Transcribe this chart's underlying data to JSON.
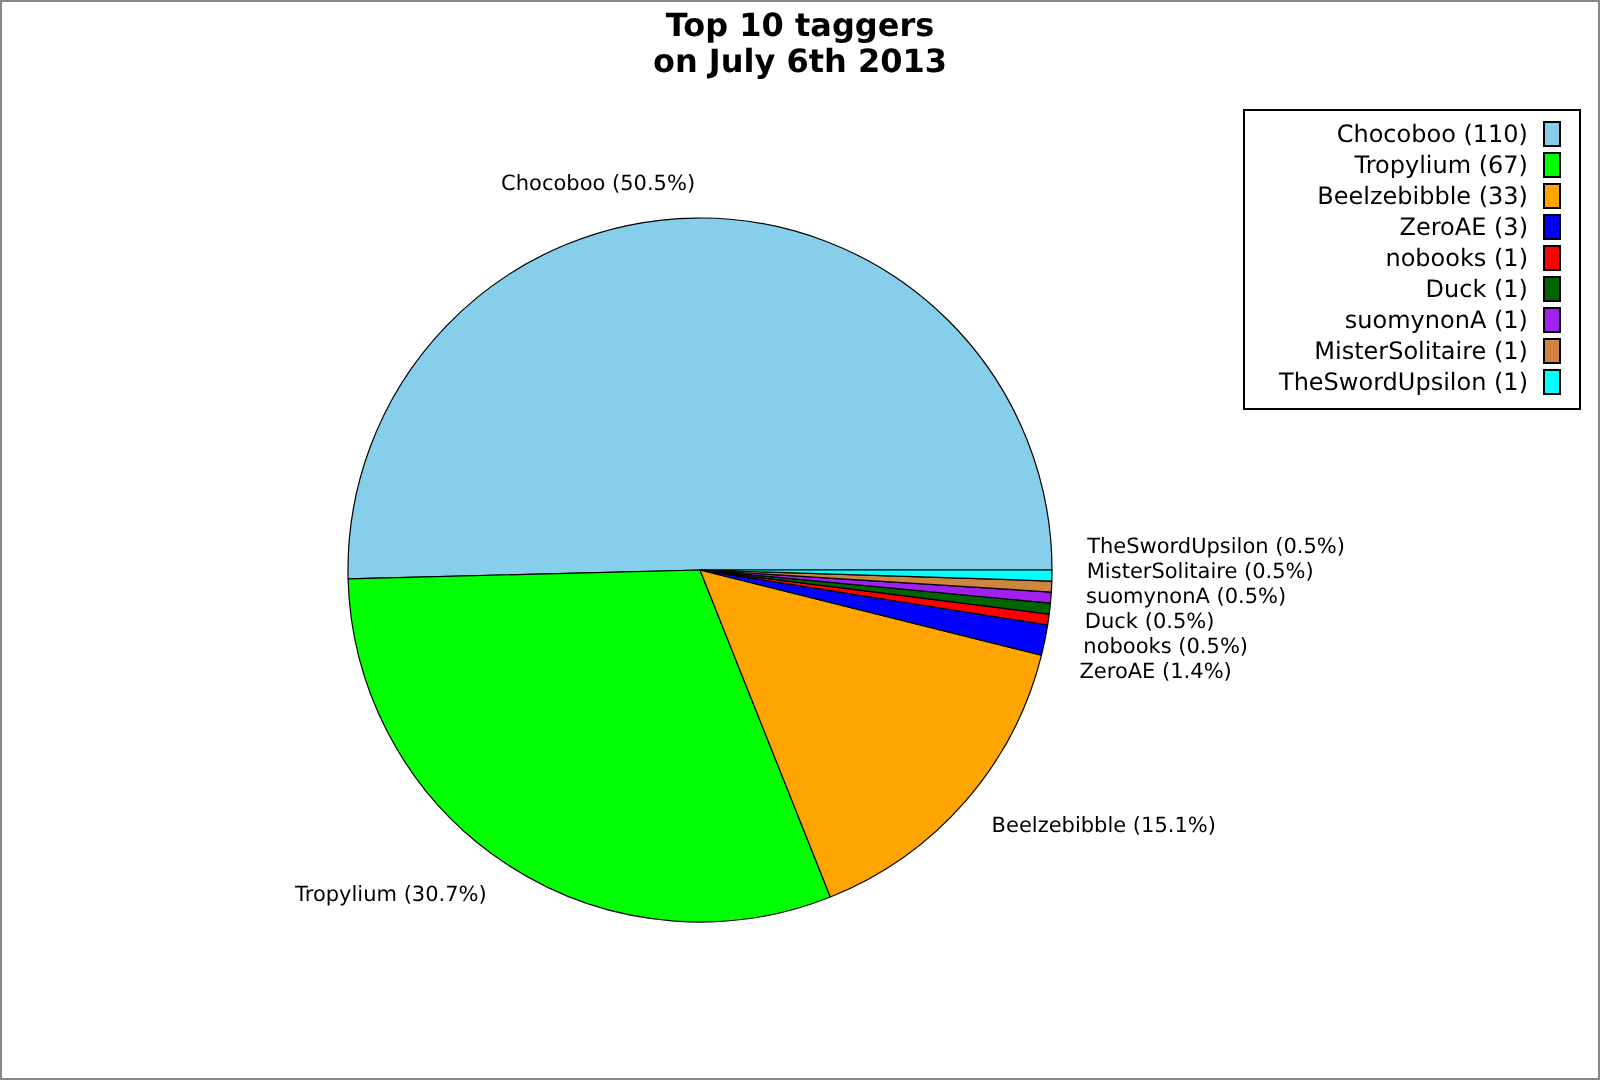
{
  "chart_data": {
    "type": "pie",
    "title": "Top 10 taggers\non July 6th 2013",
    "categories": [
      "Chocoboo (110)",
      "Tropylium (67)",
      "Beelzebibble (33)",
      "ZeroAE (3)",
      "nobooks (1)",
      "Duck (1)",
      "suomynonA (1)",
      "MisterSolitaire (1)",
      "TheSwordUpsilon (1)"
    ],
    "values": [
      50.5,
      30.7,
      15.1,
      1.4,
      0.5,
      0.5,
      0.5,
      0.5,
      0.5
    ],
    "value_labels": [
      "Chocoboo (50.5%)",
      "Tropylium (30.7%)",
      "Beelzebibble (15.1%)",
      "ZeroAE (1.4%)",
      "nobooks (0.5%)",
      "Duck (0.5%)",
      "suomynonA (0.5%)",
      "MisterSolitaire (0.5%)",
      "TheSwordUpsilon (0.5%)"
    ],
    "colors": [
      "#87ceeb",
      "#00ff00",
      "#ffa500",
      "#0000ff",
      "#ff0000",
      "#006400",
      "#a020f0",
      "#cd853f",
      "#00ffff"
    ],
    "legend": "top right"
  }
}
